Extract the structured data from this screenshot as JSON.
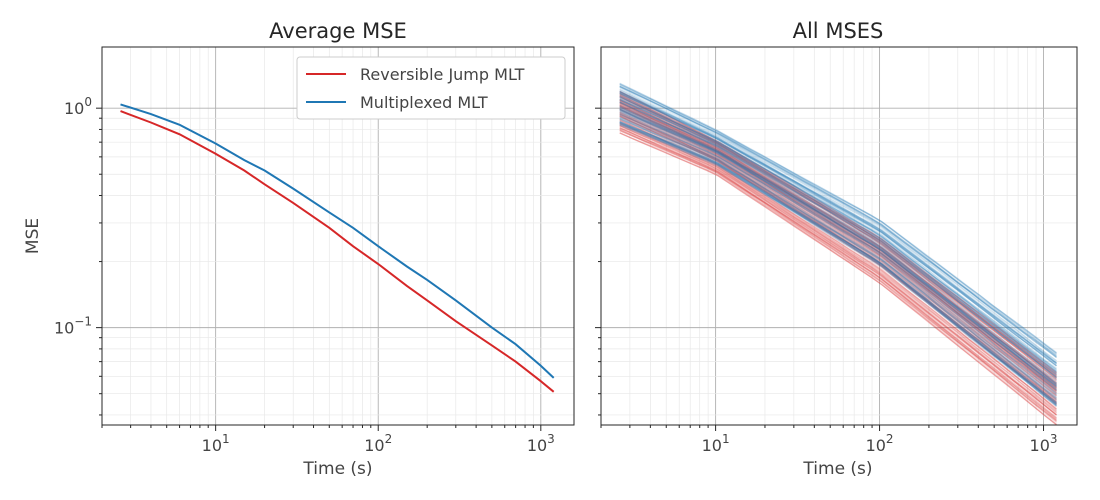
{
  "chart_data": [
    {
      "type": "line",
      "title": "Average MSE",
      "xlabel": "Time (s)",
      "ylabel": "MSE",
      "xscale": "log",
      "yscale": "log",
      "xlim": [
        2.0,
        1600
      ],
      "ylim": [
        0.036,
        1.9
      ],
      "grid": true,
      "legend_position": "top-right",
      "x_ticks": [
        {
          "base": "10",
          "exp": "1"
        },
        {
          "base": "10",
          "exp": "2"
        },
        {
          "base": "10",
          "exp": "3"
        }
      ],
      "y_ticks": [
        {
          "base": "10",
          "exp": "0"
        },
        {
          "base": "10",
          "exp": "−1"
        }
      ],
      "series": [
        {
          "name": "Reversible Jump MLT",
          "color": "#d62728",
          "x": [
            2.6,
            4,
            6,
            10,
            15,
            20,
            30,
            50,
            70,
            100,
            150,
            200,
            300,
            500,
            700,
            1000,
            1200
          ],
          "y": [
            0.97,
            0.86,
            0.76,
            0.62,
            0.52,
            0.45,
            0.37,
            0.285,
            0.235,
            0.195,
            0.155,
            0.133,
            0.107,
            0.083,
            0.07,
            0.057,
            0.051
          ]
        },
        {
          "name": "Multiplexed MLT",
          "color": "#1f77b4",
          "x": [
            2.6,
            4,
            6,
            10,
            15,
            20,
            30,
            50,
            70,
            100,
            150,
            200,
            300,
            500,
            700,
            1000,
            1200
          ],
          "y": [
            1.04,
            0.94,
            0.84,
            0.69,
            0.58,
            0.52,
            0.43,
            0.335,
            0.285,
            0.235,
            0.19,
            0.165,
            0.133,
            0.1,
            0.084,
            0.067,
            0.059
          ]
        }
      ]
    },
    {
      "type": "line",
      "title": "All MSES",
      "xlabel": "Time (s)",
      "ylabel": "",
      "xscale": "log",
      "yscale": "log",
      "xlim": [
        2.0,
        1600
      ],
      "ylim": [
        0.036,
        1.9
      ],
      "grid": true,
      "x_ticks": [
        {
          "base": "10",
          "exp": "1"
        },
        {
          "base": "10",
          "exp": "2"
        },
        {
          "base": "10",
          "exp": "3"
        }
      ],
      "line_opacity": 0.15,
      "series": [
        {
          "color": "#d62728",
          "x": [
            2.6,
            10,
            100,
            1200
          ],
          "y_band_low": [
            0.77,
            0.5,
            0.16,
            0.036
          ],
          "y_band_high": [
            1.2,
            0.72,
            0.26,
            0.063
          ],
          "n_lines": 100
        },
        {
          "color": "#1f77b4",
          "x": [
            2.6,
            10,
            100,
            1200
          ],
          "y_band_low": [
            0.83,
            0.55,
            0.19,
            0.043
          ],
          "y_band_high": [
            1.3,
            0.8,
            0.31,
            0.077
          ],
          "n_lines": 100
        }
      ]
    }
  ]
}
